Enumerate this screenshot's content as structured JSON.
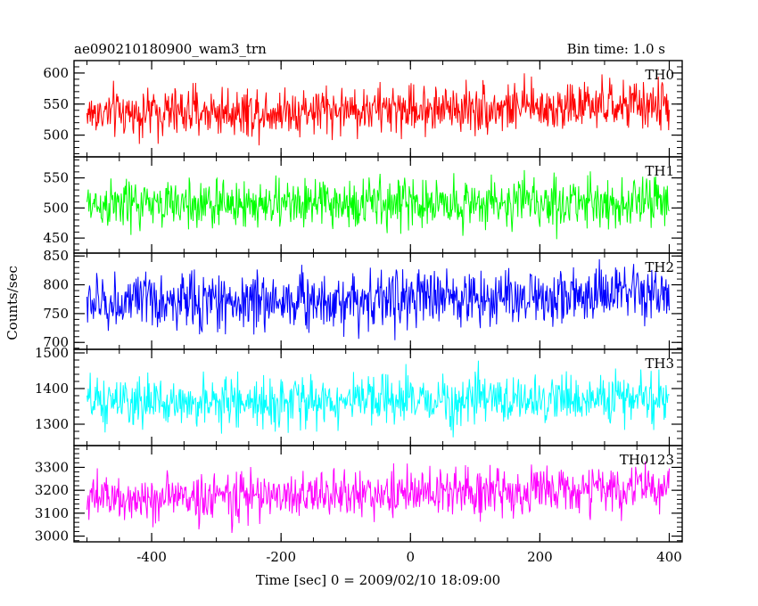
{
  "header": {
    "title": "ae090210180900_wam3_trn",
    "bin_time": "Bin time: 1.0 s"
  },
  "chart_data": {
    "type": "line",
    "xlabel": "Time [sec] 0 = 2009/02/10 18:09:00",
    "ylabel": "Counts/sec",
    "xlim": [
      -520,
      420
    ],
    "x_ticks": [
      -400,
      -200,
      0,
      200,
      400
    ],
    "x_range": [
      -500,
      400
    ],
    "bin_time_s": 1.0,
    "panels": [
      {
        "name": "TH0",
        "color": "#ff0000",
        "ylim": [
          465,
          620
        ],
        "y_ticks": [
          500,
          550,
          600
        ],
        "mean_start": 535,
        "mean_end": 548,
        "amplitude": 22
      },
      {
        "name": "TH1",
        "color": "#00ff00",
        "ylim": [
          425,
          585
        ],
        "y_ticks": [
          450,
          500,
          550
        ],
        "mean_start": 505,
        "mean_end": 510,
        "amplitude": 23
      },
      {
        "name": "TH2",
        "color": "#0000ff",
        "ylim": [
          688,
          855
        ],
        "y_ticks": [
          700,
          750,
          800,
          850
        ],
        "mean_start": 768,
        "mean_end": 783,
        "amplitude": 28
      },
      {
        "name": "TH3",
        "color": "#00ffff",
        "ylim": [
          1240,
          1510
        ],
        "y_ticks": [
          1300,
          1400,
          1500
        ],
        "mean_start": 1358,
        "mean_end": 1372,
        "amplitude": 38
      },
      {
        "name": "TH0123",
        "color": "#ff00ff",
        "ylim": [
          2975,
          3395
        ],
        "y_ticks": [
          3000,
          3100,
          3200,
          3300
        ],
        "mean_start": 3160,
        "mean_end": 3210,
        "amplitude": 58
      }
    ]
  }
}
